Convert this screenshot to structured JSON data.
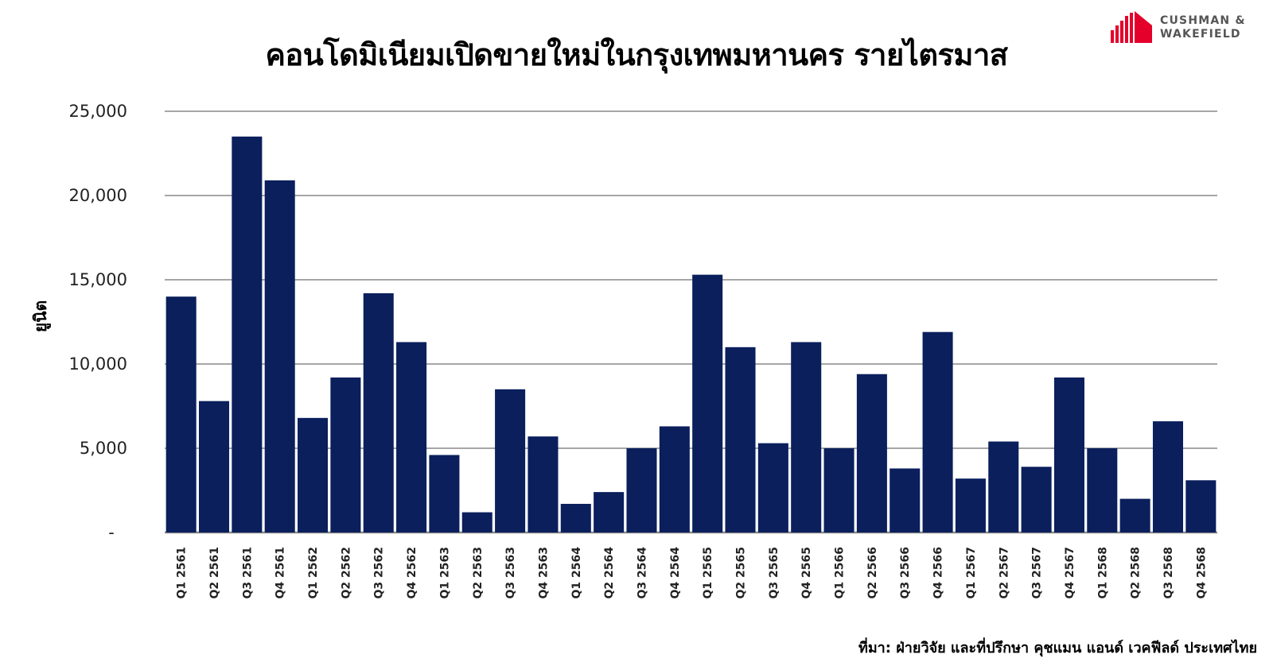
{
  "title": "คอนโดมิเนียมเปิดขายใหม่ในกรุงเทพมหานคร รายไตรมาส",
  "logo": {
    "line1": "CUSHMAN &",
    "line2": "WAKEFIELD",
    "color": "#e4002b"
  },
  "source": "ที่มา: ฝ่ายวิจัย และที่ปรึกษา คุชแมน แอนด์ เวคฟีลด์ ประเทศไทย",
  "colors": {
    "bar": "#0a1f5c",
    "grid": "#a6a6a6"
  },
  "chart_data": {
    "type": "bar",
    "ylabel": "ยูนิต",
    "ylim": [
      0,
      25000
    ],
    "yticks": [
      0,
      5000,
      10000,
      15000,
      20000,
      25000
    ],
    "ytick_labels": [
      "-",
      "5,000",
      "10,000",
      "15,000",
      "20,000",
      "25,000"
    ],
    "grid": true,
    "categories": [
      "Q1 2561",
      "Q2 2561",
      "Q3 2561",
      "Q4 2561",
      "Q1 2562",
      "Q2 2562",
      "Q3 2562",
      "Q4 2562",
      "Q1 2563",
      "Q2 2563",
      "Q3 2563",
      "Q4 2563",
      "Q1 2564",
      "Q2 2564",
      "Q3 2564",
      "Q4 2564",
      "Q1 2565",
      "Q2 2565",
      "Q3 2565",
      "Q4 2565",
      "Q1 2566",
      "Q2 2566",
      "Q3 2566",
      "Q4 2566",
      "Q1 2567",
      "Q2 2567",
      "Q3 2567",
      "Q4 2567",
      "Q1 2568",
      "Q2 2568",
      "Q3 2568",
      "Q4 2568"
    ],
    "values": [
      14000,
      7800,
      23500,
      20900,
      6800,
      9200,
      14200,
      11300,
      4600,
      1200,
      8500,
      5700,
      1700,
      2400,
      5000,
      6300,
      15300,
      11000,
      5300,
      11300,
      5000,
      9400,
      3800,
      11900,
      3200,
      5400,
      3900,
      9200,
      5000,
      2000,
      6600,
      3100
    ]
  }
}
